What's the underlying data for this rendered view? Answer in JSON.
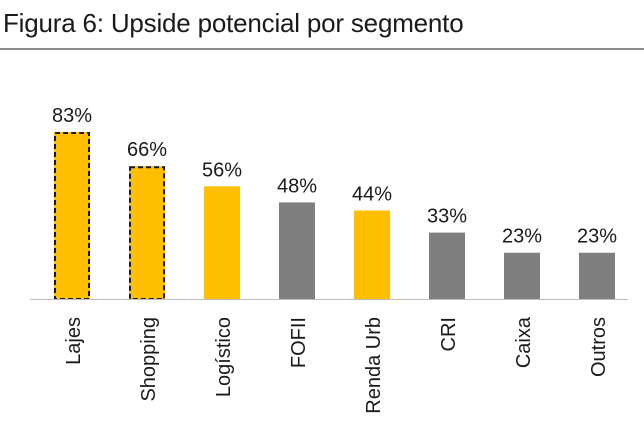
{
  "title": "Figura 6: Upside potencial por segmento",
  "colors": {
    "highlight": "#FFBF00",
    "neutral": "#7F7F7F",
    "text": "#1a1a1a",
    "axis": "#bfbfbf"
  },
  "chart_data": {
    "type": "bar",
    "title": "",
    "categories": [
      "Lajes",
      "Shopping",
      "Logístico",
      "FOFII",
      "Renda Urb",
      "CRI",
      "Caixa",
      "Outros"
    ],
    "values": [
      83,
      66,
      56,
      48,
      44,
      33,
      23,
      23
    ],
    "value_labels": [
      "83%",
      "66%",
      "56%",
      "48%",
      "44%",
      "33%",
      "23%",
      "23%"
    ],
    "bar_colors": [
      "highlight",
      "highlight",
      "highlight",
      "neutral",
      "highlight",
      "neutral",
      "neutral",
      "neutral"
    ],
    "dashed_outline": [
      true,
      true,
      false,
      false,
      false,
      false,
      false,
      false
    ],
    "ylim": [
      0,
      83
    ],
    "xlabel": "",
    "ylabel": "",
    "grid": false,
    "legend": "none"
  }
}
